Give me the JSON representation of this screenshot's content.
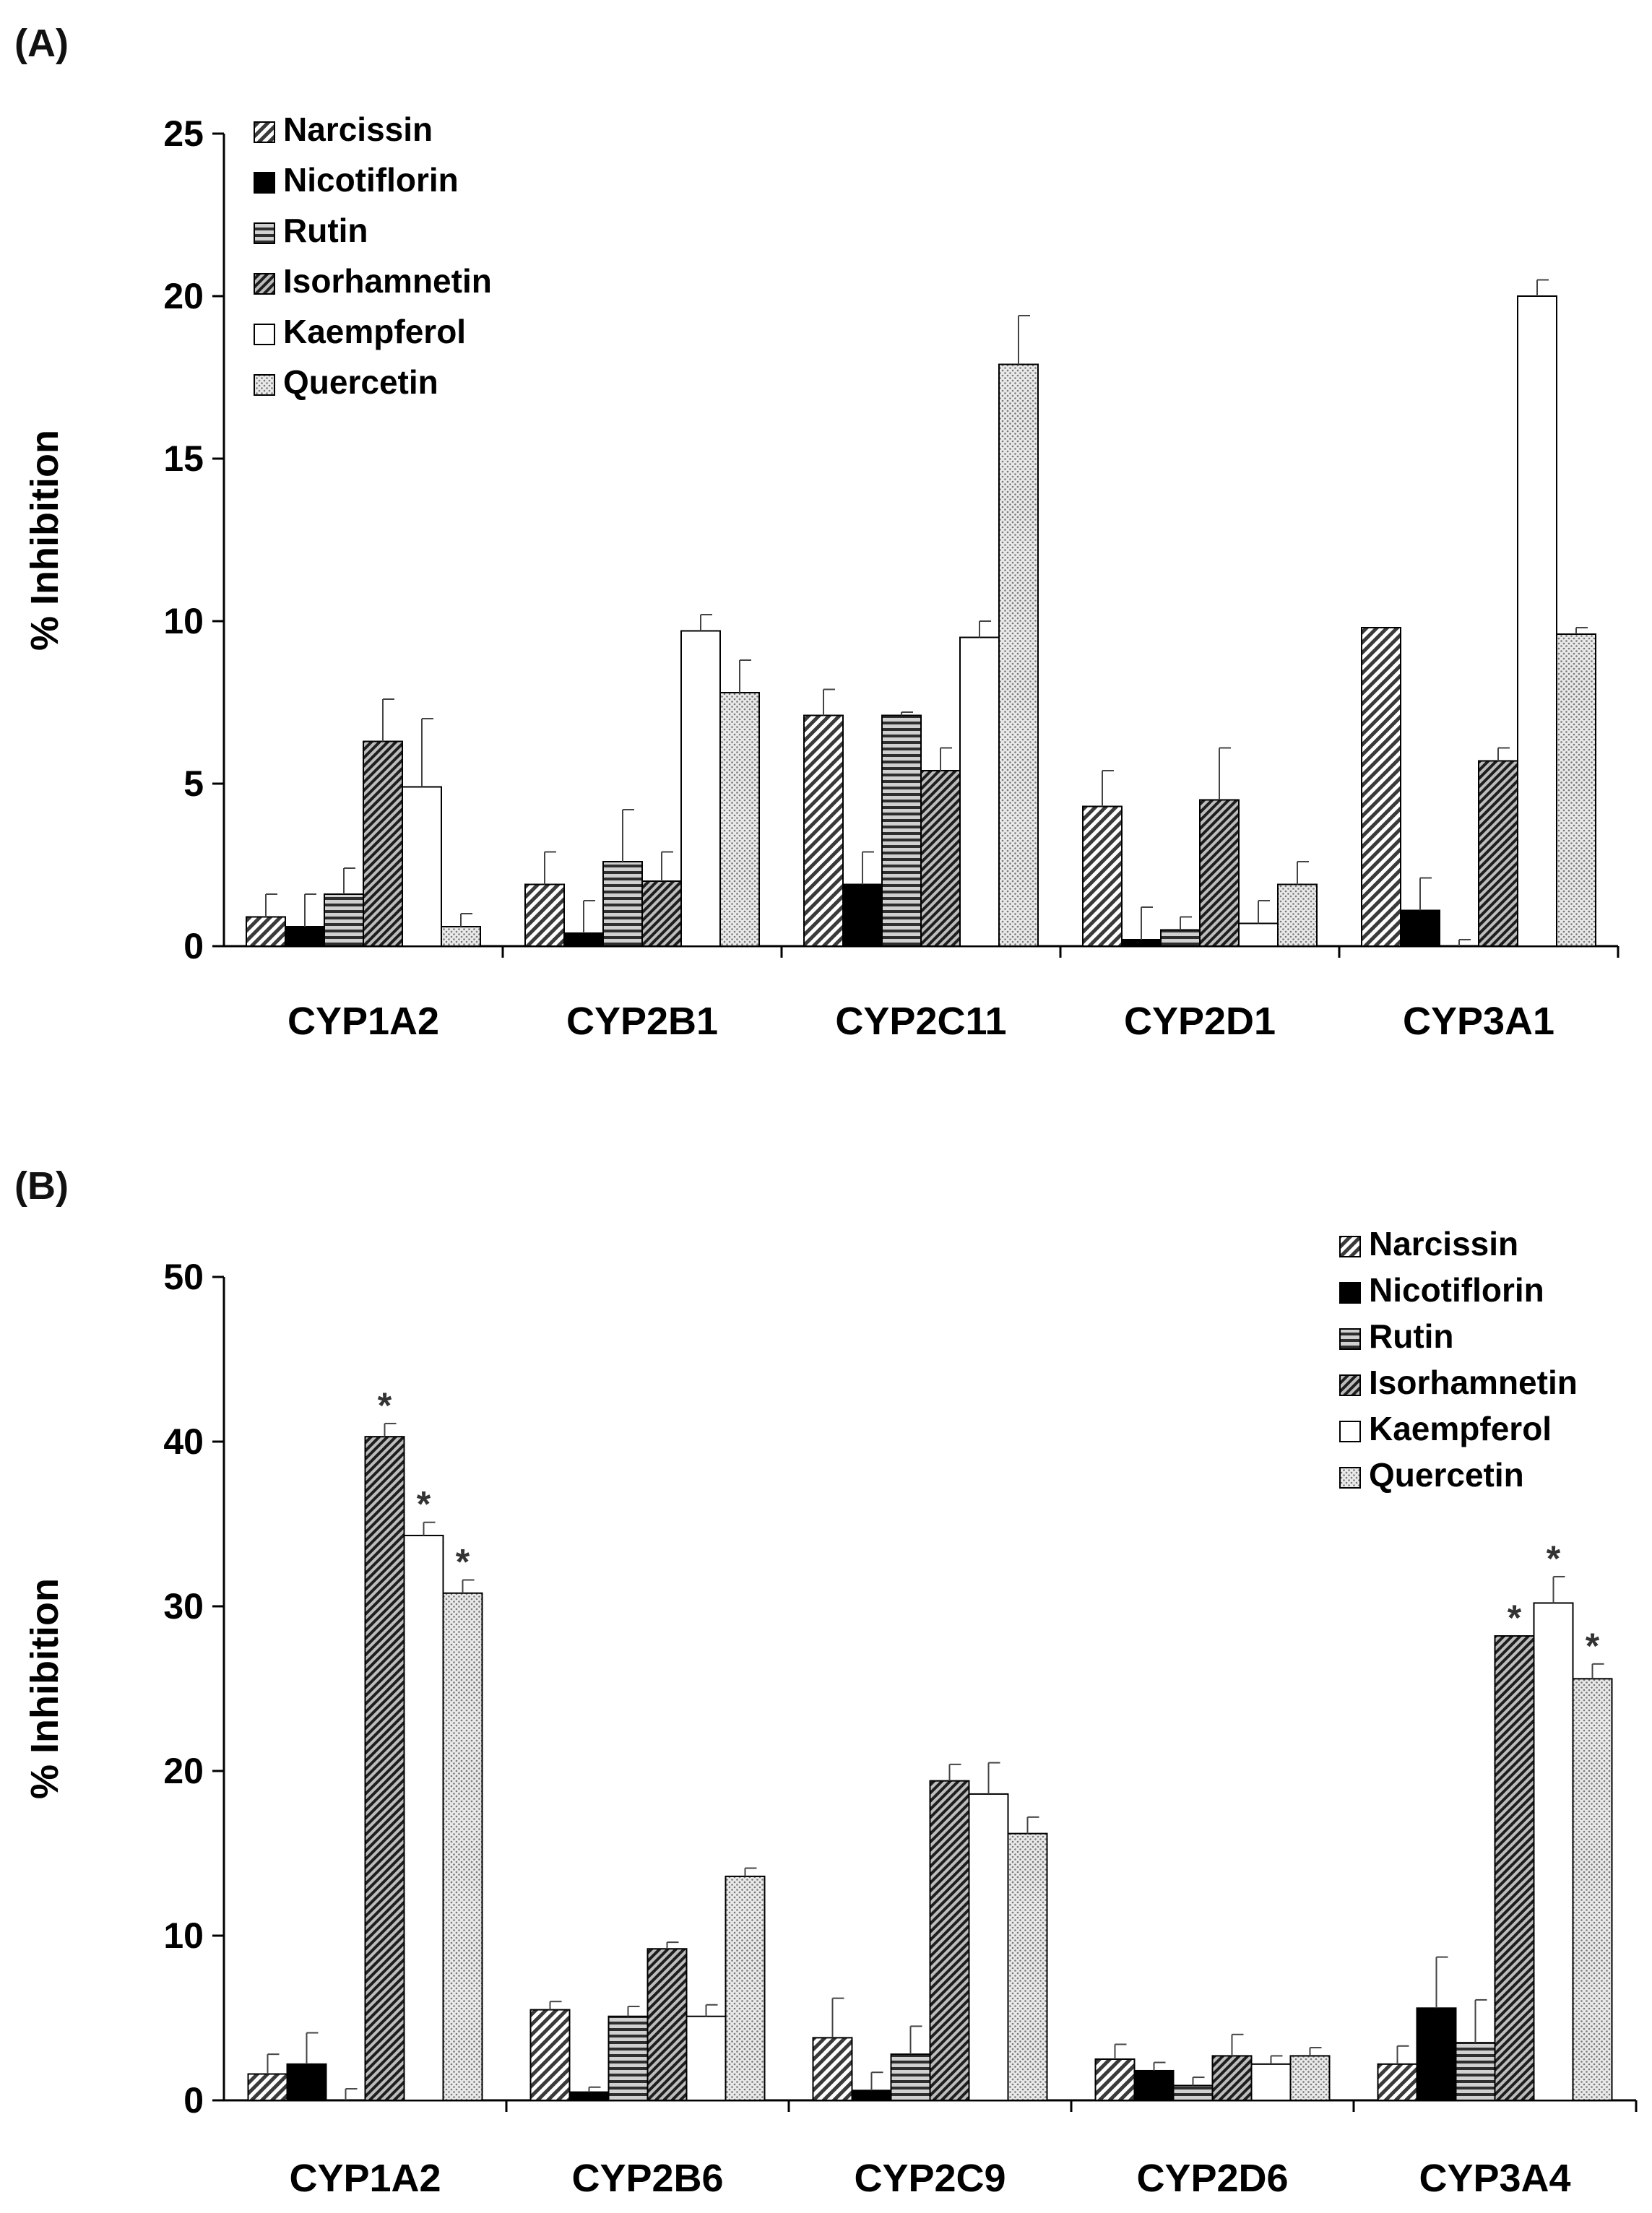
{
  "chart_data": [
    {
      "type": "bar",
      "panel_label": "(A)",
      "categories": [
        "CYP1A2",
        "CYP2B1",
        "CYP2C11",
        "CYP2D1",
        "CYP3A1"
      ],
      "ylabel": "% Inhibition",
      "ylim": [
        0,
        25
      ],
      "yticks": [
        0,
        5,
        10,
        15,
        20,
        25
      ],
      "legend_position": "top-left",
      "series": [
        {
          "name": "Narcissin",
          "pattern": "hatch-diag",
          "values": [
            0.9,
            1.9,
            7.1,
            4.3,
            9.8
          ],
          "errors": [
            0.7,
            1.0,
            0.8,
            1.1,
            0
          ]
        },
        {
          "name": "Nicotiflorin",
          "pattern": "solid-black",
          "values": [
            0.6,
            0.4,
            1.9,
            0.2,
            1.1
          ],
          "errors": [
            1.0,
            1.0,
            1.0,
            1.0,
            1.0
          ]
        },
        {
          "name": "Rutin",
          "pattern": "hatch-horizontal",
          "values": [
            1.6,
            2.6,
            7.1,
            0.5,
            0.0
          ],
          "errors": [
            0.8,
            1.6,
            0.1,
            0.4,
            0.2
          ]
        },
        {
          "name": "Isorhamnetin",
          "pattern": "hatch-dense",
          "values": [
            6.3,
            2.0,
            5.4,
            4.5,
            5.7
          ],
          "errors": [
            1.3,
            0.9,
            0.7,
            1.6,
            0.4
          ]
        },
        {
          "name": "Kaempferol",
          "pattern": "white",
          "values": [
            4.9,
            9.7,
            9.5,
            0.7,
            20.0
          ],
          "errors": [
            2.1,
            0.5,
            0.5,
            0.7,
            0.5
          ]
        },
        {
          "name": "Quercetin",
          "pattern": "dots",
          "values": [
            0.6,
            7.8,
            17.9,
            1.9,
            9.6
          ],
          "errors": [
            0.4,
            1.0,
            1.5,
            0.7,
            0.2
          ]
        }
      ],
      "annotations": []
    },
    {
      "type": "bar",
      "panel_label": "(B)",
      "categories": [
        "CYP1A2",
        "CYP2B6",
        "CYP2C9",
        "CYP2D6",
        "CYP3A4"
      ],
      "ylabel": "% Inhibition",
      "ylim": [
        0,
        50
      ],
      "yticks": [
        0,
        10,
        20,
        30,
        40,
        50
      ],
      "legend_position": "top-right",
      "series": [
        {
          "name": "Narcissin",
          "pattern": "hatch-diag",
          "values": [
            1.6,
            5.5,
            3.8,
            2.5,
            2.2
          ],
          "errors": [
            1.2,
            0.5,
            2.4,
            0.9,
            1.1
          ]
        },
        {
          "name": "Nicotiflorin",
          "pattern": "solid-black",
          "values": [
            2.2,
            0.5,
            0.6,
            1.8,
            5.6
          ],
          "errors": [
            1.9,
            0.3,
            1.1,
            0.5,
            3.1
          ]
        },
        {
          "name": "Rutin",
          "pattern": "hatch-horizontal",
          "values": [
            0.0,
            5.1,
            2.8,
            0.9,
            3.5
          ],
          "errors": [
            0.7,
            0.6,
            1.7,
            0.5,
            2.6
          ]
        },
        {
          "name": "Isorhamnetin",
          "pattern": "hatch-dense",
          "values": [
            40.3,
            9.2,
            19.4,
            2.7,
            28.2
          ],
          "errors": [
            0.8,
            0.4,
            1.0,
            1.3,
            0
          ]
        },
        {
          "name": "Kaempferol",
          "pattern": "white",
          "values": [
            34.3,
            5.1,
            18.6,
            2.2,
            30.2
          ],
          "errors": [
            0.8,
            0.7,
            1.9,
            0.5,
            1.6
          ]
        },
        {
          "name": "Quercetin",
          "pattern": "dots",
          "values": [
            30.8,
            13.6,
            16.2,
            2.7,
            25.6
          ],
          "errors": [
            0.8,
            0.5,
            1.0,
            0.5,
            0.9
          ]
        }
      ],
      "annotations": [
        {
          "text": "*",
          "category": "CYP1A2",
          "series": "Isorhamnetin"
        },
        {
          "text": "*",
          "category": "CYP1A2",
          "series": "Kaempferol"
        },
        {
          "text": "*",
          "category": "CYP1A2",
          "series": "Quercetin"
        },
        {
          "text": "*",
          "category": "CYP3A4",
          "series": "Isorhamnetin"
        },
        {
          "text": "*",
          "category": "CYP3A4",
          "series": "Kaempferol"
        },
        {
          "text": "*",
          "category": "CYP3A4",
          "series": "Quercetin"
        }
      ]
    }
  ]
}
